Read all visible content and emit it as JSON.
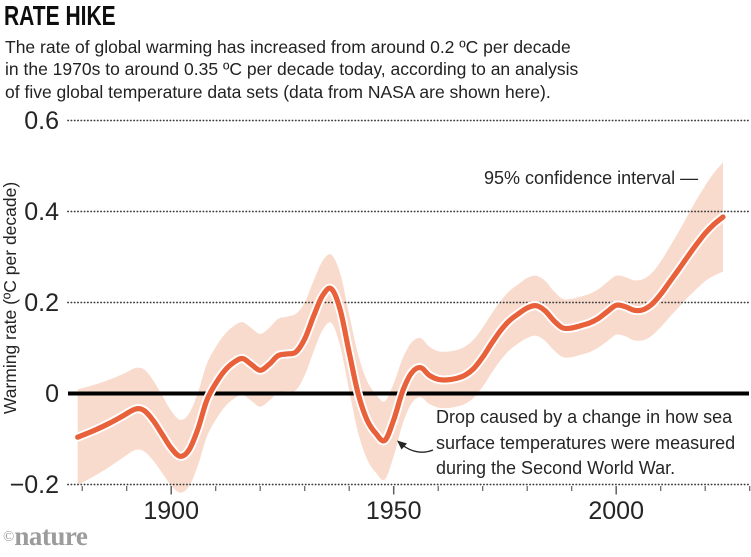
{
  "header": {
    "title": "RATE HIKE",
    "subtitle_lines": [
      "The rate of global warming has increased from around 0.2 ºC per decade",
      "in the 1970s to around 0.35 ºC per decade today, according to an analysis",
      "of five global temperature data sets (data from NASA are shown here)."
    ]
  },
  "annotations": {
    "confidence_interval": "95% confidence interval —",
    "drop_lines": [
      "Drop caused by a change in how sea",
      "surface temperatures were measured",
      "during the Second World War."
    ]
  },
  "footer": {
    "copyright": "©",
    "logo": "nature"
  },
  "chart_data": {
    "type": "line",
    "title": "RATE HIKE",
    "ylabel": "Warming rate (ºC per decade)",
    "xlabel": "",
    "grid": "horizontal-dotted",
    "legend_position": "none",
    "x_axis": {
      "labeled_ticks": [
        1900,
        1950,
        2000
      ],
      "minor_tick_step": 10,
      "tick_range": [
        1880,
        2030
      ],
      "xlim": [
        1877,
        2031
      ]
    },
    "y_axis": {
      "ticks": [
        -0.2,
        0,
        0.2,
        0.4,
        0.6
      ],
      "tick_labels": [
        "−0.2",
        "0",
        "0.2",
        "0.4",
        "0.6"
      ],
      "ylim": [
        -0.25,
        0.65
      ],
      "zero_baseline": true
    },
    "colors": {
      "line": "#e8613b",
      "line_casing": "#ffffff",
      "band": "#f9dbcd",
      "zero_line": "#000000",
      "grid_dots": "#3f3f3f",
      "tick": "#5f5f5f",
      "axis_text": "#242424",
      "logo": "#9c9c9c"
    },
    "years": [
      1879,
      1883,
      1886,
      1889,
      1892,
      1894,
      1896,
      1898,
      1900,
      1902,
      1904,
      1906,
      1908,
      1910,
      1912,
      1914,
      1916,
      1918,
      1920,
      1922,
      1924,
      1926,
      1928,
      1930,
      1932,
      1934,
      1936,
      1938,
      1940,
      1942,
      1944,
      1946,
      1948,
      1950,
      1952,
      1954,
      1956,
      1958,
      1960,
      1962,
      1964,
      1966,
      1968,
      1970,
      1972,
      1974,
      1976,
      1978,
      1980,
      1982,
      1984,
      1986,
      1988,
      1990,
      1992,
      1994,
      1996,
      1998,
      2000,
      2002,
      2004,
      2006,
      2008,
      2010,
      2012,
      2014,
      2016,
      2018,
      2020,
      2022,
      2024
    ],
    "line_series": {
      "name": "Warming rate (NASA)",
      "values": [
        -0.096,
        -0.08,
        -0.066,
        -0.05,
        -0.034,
        -0.038,
        -0.06,
        -0.09,
        -0.12,
        -0.138,
        -0.124,
        -0.078,
        -0.015,
        0.022,
        0.05,
        0.068,
        0.077,
        0.064,
        0.051,
        0.064,
        0.083,
        0.087,
        0.091,
        0.12,
        0.17,
        0.215,
        0.23,
        0.183,
        0.09,
        0.0,
        -0.058,
        -0.088,
        -0.103,
        -0.058,
        0.005,
        0.045,
        0.057,
        0.04,
        0.031,
        0.03,
        0.033,
        0.04,
        0.055,
        0.08,
        0.11,
        0.138,
        0.16,
        0.175,
        0.188,
        0.193,
        0.182,
        0.16,
        0.144,
        0.144,
        0.149,
        0.155,
        0.165,
        0.18,
        0.194,
        0.191,
        0.183,
        0.184,
        0.196,
        0.218,
        0.245,
        0.272,
        0.3,
        0.327,
        0.352,
        0.372,
        0.388
      ]
    },
    "band_series": {
      "name": "95% confidence interval",
      "lower": [
        -0.201,
        -0.18,
        -0.162,
        -0.142,
        -0.124,
        -0.128,
        -0.148,
        -0.175,
        -0.202,
        -0.218,
        -0.204,
        -0.158,
        -0.095,
        -0.058,
        -0.03,
        -0.012,
        -0.003,
        -0.016,
        -0.029,
        -0.016,
        0.002,
        0.005,
        0.007,
        0.04,
        0.092,
        0.139,
        0.155,
        0.103,
        0.006,
        -0.086,
        -0.144,
        -0.174,
        -0.189,
        -0.138,
        -0.067,
        -0.022,
        -0.008,
        -0.023,
        -0.031,
        -0.032,
        -0.029,
        -0.023,
        -0.009,
        0.015,
        0.045,
        0.073,
        0.095,
        0.11,
        0.122,
        0.127,
        0.116,
        0.095,
        0.08,
        0.08,
        0.085,
        0.091,
        0.101,
        0.115,
        0.129,
        0.126,
        0.117,
        0.117,
        0.127,
        0.146,
        0.168,
        0.189,
        0.21,
        0.229,
        0.247,
        0.259,
        0.268
      ],
      "upper": [
        0.009,
        0.02,
        0.03,
        0.042,
        0.056,
        0.052,
        0.028,
        -0.005,
        -0.038,
        -0.058,
        -0.044,
        0.002,
        0.065,
        0.102,
        0.13,
        0.148,
        0.157,
        0.144,
        0.131,
        0.144,
        0.164,
        0.169,
        0.175,
        0.2,
        0.248,
        0.291,
        0.305,
        0.263,
        0.174,
        0.086,
        0.028,
        -0.002,
        -0.017,
        0.022,
        0.077,
        0.112,
        0.122,
        0.103,
        0.093,
        0.092,
        0.095,
        0.103,
        0.119,
        0.145,
        0.175,
        0.203,
        0.225,
        0.24,
        0.254,
        0.259,
        0.248,
        0.225,
        0.208,
        0.208,
        0.213,
        0.219,
        0.229,
        0.245,
        0.259,
        0.256,
        0.249,
        0.251,
        0.265,
        0.29,
        0.322,
        0.355,
        0.39,
        0.425,
        0.457,
        0.485,
        0.508
      ]
    }
  }
}
